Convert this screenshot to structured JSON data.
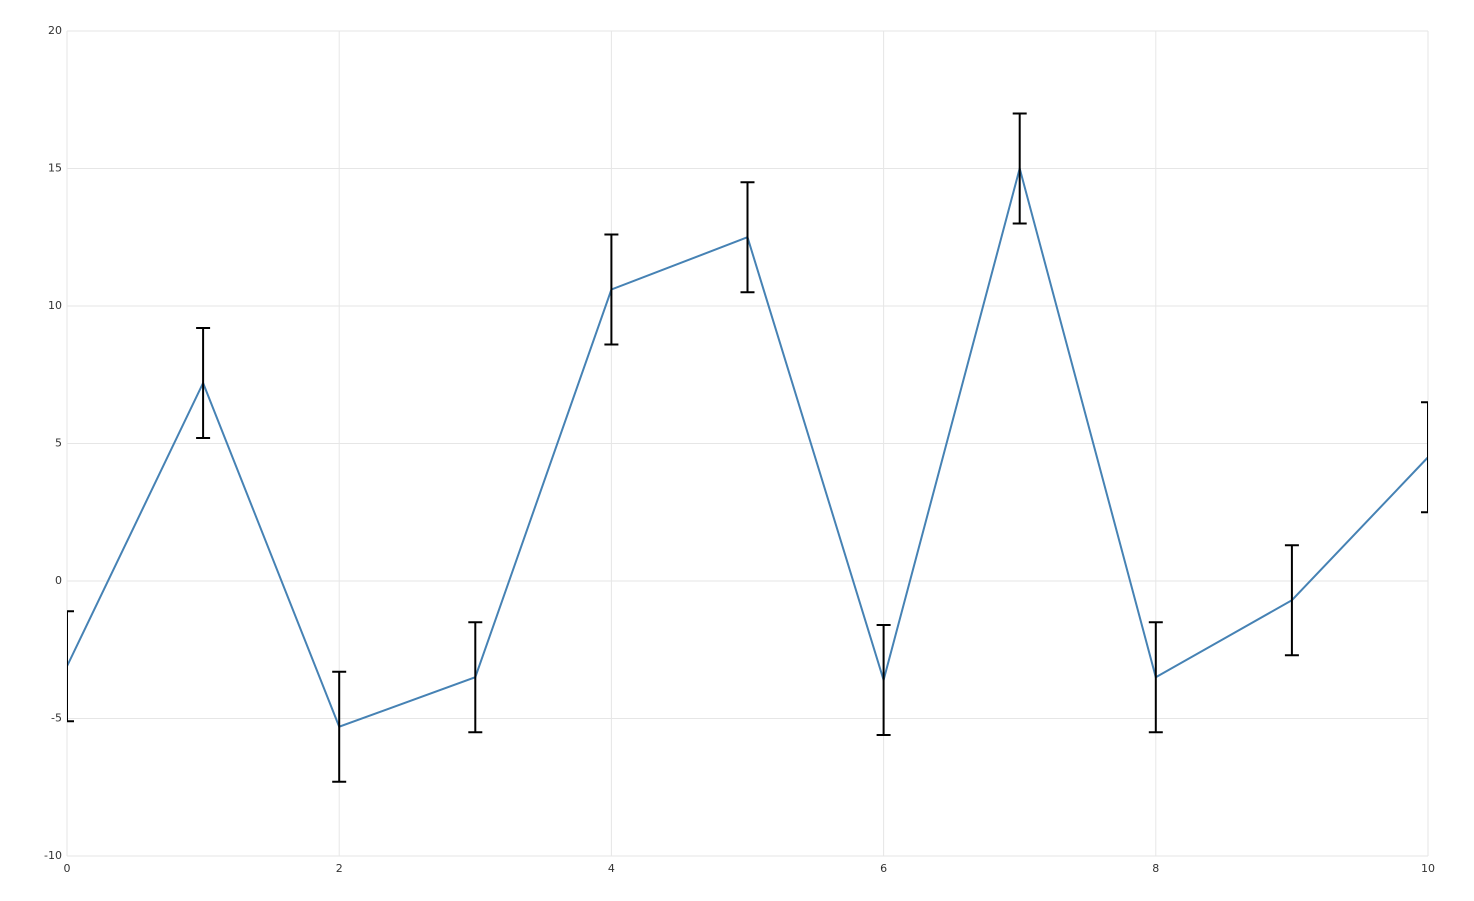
{
  "chart_data": {
    "type": "line",
    "x": [
      0,
      1,
      2,
      3,
      4,
      5,
      6,
      7,
      8,
      9,
      10
    ],
    "values": [
      -3.1,
      7.2,
      -5.3,
      -3.5,
      10.6,
      12.5,
      -3.6,
      15.0,
      -3.5,
      -0.7,
      4.5
    ],
    "errors": [
      2,
      2,
      2,
      2,
      2,
      2,
      2,
      2,
      2,
      2,
      2
    ],
    "color": "#4682b4",
    "error_color": "#000000",
    "xlim": [
      0,
      10
    ],
    "xticks": [
      0,
      2,
      4,
      6,
      8,
      10
    ],
    "ylim": [
      -10,
      20
    ],
    "yticks": [
      -10,
      -5,
      0,
      5,
      10,
      15,
      20
    ],
    "grid": true
  }
}
